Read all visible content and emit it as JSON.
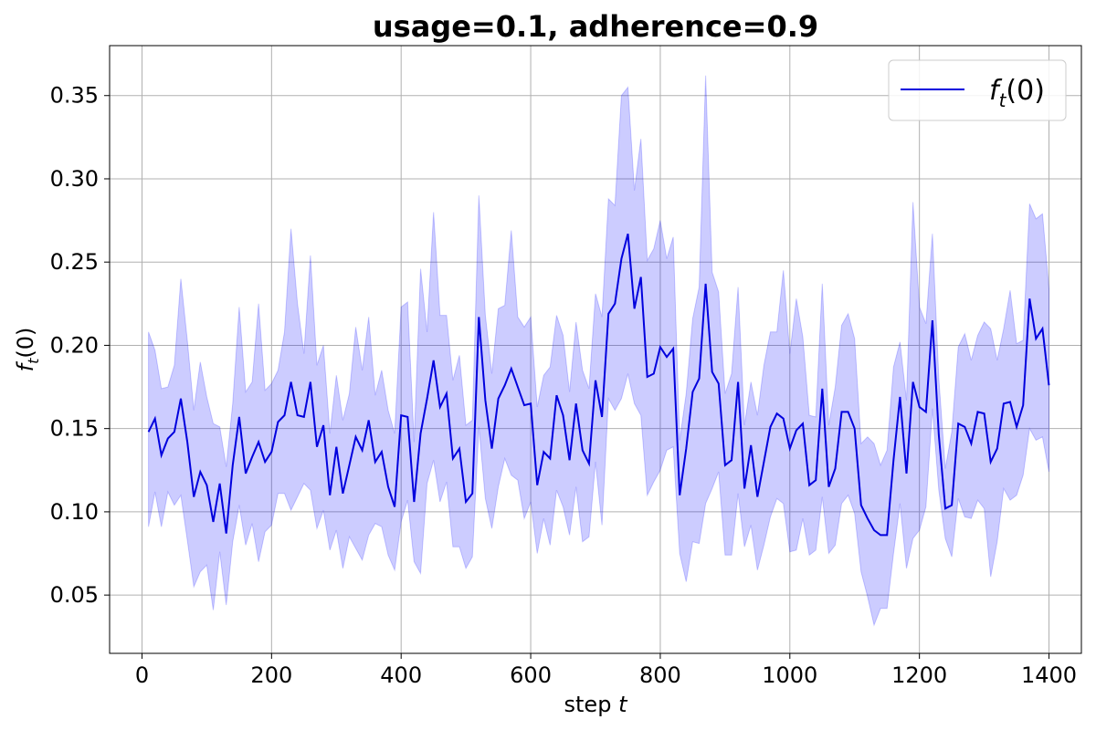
{
  "chart_data": {
    "type": "line",
    "title": "usage=0.1, adherence=0.9",
    "xlabel": "step t",
    "ylabel": "f_t(0)",
    "xlim": [
      -50,
      1450
    ],
    "ylim": [
      0.015,
      0.38
    ],
    "xticks": [
      0,
      200,
      400,
      600,
      800,
      1000,
      1200,
      1400
    ],
    "xtick_labels": [
      "0",
      "200",
      "400",
      "600",
      "800",
      "1000",
      "1200",
      "1400"
    ],
    "yticks": [
      0.05,
      0.1,
      0.15,
      0.2,
      0.25,
      0.3,
      0.35
    ],
    "ytick_labels": [
      "0.05",
      "0.10",
      "0.15",
      "0.20",
      "0.25",
      "0.30",
      "0.35"
    ],
    "grid": true,
    "legend_position": "top-right",
    "colors": {
      "line": "#0000dd",
      "band": "#0000ff"
    },
    "series": [
      {
        "name": "f_t(0)",
        "x": [
          10,
          20,
          30,
          40,
          50,
          60,
          70,
          80,
          90,
          100,
          110,
          120,
          130,
          140,
          150,
          160,
          170,
          180,
          190,
          200,
          210,
          220,
          230,
          240,
          250,
          260,
          270,
          280,
          290,
          300,
          310,
          320,
          330,
          340,
          350,
          360,
          370,
          380,
          390,
          400,
          410,
          420,
          430,
          440,
          450,
          460,
          470,
          480,
          490,
          500,
          510,
          520,
          530,
          540,
          550,
          560,
          570,
          580,
          590,
          600,
          610,
          620,
          630,
          640,
          650,
          660,
          670,
          680,
          690,
          700,
          710,
          720,
          730,
          740,
          750,
          760,
          770,
          780,
          790,
          800,
          810,
          820,
          830,
          840,
          850,
          860,
          870,
          880,
          890,
          900,
          910,
          920,
          930,
          940,
          950,
          960,
          970,
          980,
          990,
          1000,
          1010,
          1020,
          1030,
          1040,
          1050,
          1060,
          1070,
          1080,
          1090,
          1100,
          1110,
          1120,
          1130,
          1140,
          1150,
          1160,
          1170,
          1180,
          1190,
          1200,
          1210,
          1220,
          1230,
          1240,
          1250,
          1260,
          1270,
          1280,
          1290,
          1300,
          1310,
          1320,
          1330,
          1340,
          1350,
          1360,
          1370,
          1380,
          1390,
          1400
        ],
        "y": [
          0.148,
          0.156,
          0.134,
          0.144,
          0.148,
          0.168,
          0.142,
          0.109,
          0.124,
          0.116,
          0.094,
          0.117,
          0.087,
          0.128,
          0.157,
          0.123,
          0.133,
          0.142,
          0.13,
          0.136,
          0.154,
          0.158,
          0.178,
          0.158,
          0.157,
          0.178,
          0.139,
          0.152,
          0.11,
          0.139,
          0.111,
          0.128,
          0.145,
          0.137,
          0.155,
          0.13,
          0.136,
          0.115,
          0.103,
          0.158,
          0.157,
          0.106,
          0.147,
          0.168,
          0.191,
          0.163,
          0.171,
          0.132,
          0.138,
          0.106,
          0.111,
          0.217,
          0.167,
          0.138,
          0.168,
          0.176,
          0.186,
          0.175,
          0.164,
          0.165,
          0.116,
          0.136,
          0.132,
          0.17,
          0.158,
          0.131,
          0.165,
          0.137,
          0.129,
          0.179,
          0.157,
          0.219,
          0.225,
          0.252,
          0.267,
          0.222,
          0.241,
          0.181,
          0.183,
          0.199,
          0.193,
          0.198,
          0.11,
          0.138,
          0.172,
          0.18,
          0.237,
          0.184,
          0.177,
          0.128,
          0.131,
          0.178,
          0.114,
          0.14,
          0.109,
          0.13,
          0.151,
          0.159,
          0.156,
          0.138,
          0.149,
          0.153,
          0.116,
          0.119,
          0.174,
          0.115,
          0.126,
          0.16,
          0.16,
          0.15,
          0.104,
          0.096,
          0.089,
          0.086,
          0.086,
          0.131,
          0.169,
          0.123,
          0.178,
          0.163,
          0.16,
          0.215,
          0.146,
          0.102,
          0.104,
          0.153,
          0.151,
          0.141,
          0.16,
          0.159,
          0.13,
          0.138,
          0.165,
          0.166,
          0.151,
          0.164,
          0.228,
          0.204,
          0.21,
          0.176
        ],
        "lower": [
          0.091,
          0.112,
          0.091,
          0.112,
          0.104,
          0.11,
          0.083,
          0.055,
          0.064,
          0.068,
          0.041,
          0.076,
          0.044,
          0.082,
          0.104,
          0.08,
          0.093,
          0.07,
          0.088,
          0.092,
          0.111,
          0.111,
          0.101,
          0.109,
          0.117,
          0.113,
          0.09,
          0.101,
          0.077,
          0.089,
          0.066,
          0.085,
          0.078,
          0.071,
          0.086,
          0.093,
          0.091,
          0.074,
          0.065,
          0.094,
          0.107,
          0.07,
          0.063,
          0.117,
          0.131,
          0.106,
          0.118,
          0.079,
          0.079,
          0.066,
          0.073,
          0.151,
          0.108,
          0.09,
          0.115,
          0.132,
          0.122,
          0.119,
          0.096,
          0.106,
          0.075,
          0.096,
          0.08,
          0.113,
          0.103,
          0.086,
          0.115,
          0.082,
          0.085,
          0.13,
          0.092,
          0.168,
          0.161,
          0.168,
          0.183,
          0.165,
          0.158,
          0.11,
          0.118,
          0.125,
          0.137,
          0.139,
          0.075,
          0.058,
          0.082,
          0.081,
          0.105,
          0.114,
          0.124,
          0.074,
          0.074,
          0.111,
          0.079,
          0.092,
          0.065,
          0.08,
          0.097,
          0.108,
          0.105,
          0.076,
          0.077,
          0.096,
          0.074,
          0.077,
          0.109,
          0.075,
          0.08,
          0.105,
          0.11,
          0.099,
          0.064,
          0.049,
          0.032,
          0.042,
          0.042,
          0.075,
          0.105,
          0.066,
          0.084,
          0.089,
          0.103,
          0.162,
          0.113,
          0.084,
          0.073,
          0.108,
          0.097,
          0.096,
          0.107,
          0.102,
          0.061,
          0.082,
          0.114,
          0.107,
          0.11,
          0.122,
          0.15,
          0.143,
          0.145,
          0.124
        ],
        "upper": [
          0.208,
          0.197,
          0.174,
          0.175,
          0.188,
          0.24,
          0.203,
          0.161,
          0.19,
          0.169,
          0.153,
          0.151,
          0.127,
          0.165,
          0.223,
          0.172,
          0.178,
          0.225,
          0.173,
          0.177,
          0.185,
          0.208,
          0.27,
          0.225,
          0.195,
          0.254,
          0.188,
          0.2,
          0.147,
          0.182,
          0.155,
          0.171,
          0.211,
          0.185,
          0.217,
          0.17,
          0.185,
          0.161,
          0.147,
          0.223,
          0.226,
          0.142,
          0.246,
          0.208,
          0.28,
          0.218,
          0.218,
          0.179,
          0.194,
          0.152,
          0.155,
          0.29,
          0.218,
          0.183,
          0.222,
          0.224,
          0.269,
          0.217,
          0.211,
          0.217,
          0.163,
          0.182,
          0.187,
          0.218,
          0.206,
          0.172,
          0.214,
          0.185,
          0.174,
          0.231,
          0.217,
          0.288,
          0.284,
          0.35,
          0.355,
          0.293,
          0.324,
          0.251,
          0.258,
          0.275,
          0.252,
          0.265,
          0.143,
          0.171,
          0.216,
          0.235,
          0.362,
          0.244,
          0.232,
          0.171,
          0.183,
          0.235,
          0.152,
          0.178,
          0.158,
          0.188,
          0.208,
          0.208,
          0.245,
          0.195,
          0.228,
          0.205,
          0.158,
          0.157,
          0.237,
          0.152,
          0.175,
          0.212,
          0.219,
          0.204,
          0.141,
          0.145,
          0.141,
          0.128,
          0.137,
          0.187,
          0.202,
          0.167,
          0.286,
          0.223,
          0.213,
          0.267,
          0.18,
          0.126,
          0.148,
          0.199,
          0.207,
          0.191,
          0.206,
          0.214,
          0.21,
          0.191,
          0.21,
          0.233,
          0.201,
          0.203,
          0.285,
          0.276,
          0.279,
          0.234
        ]
      }
    ]
  }
}
